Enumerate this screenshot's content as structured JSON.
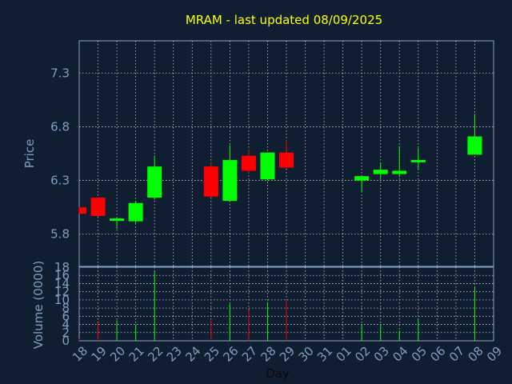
{
  "colors": {
    "background": "#0f1e30",
    "title": "#ffff00",
    "axis_text": "#7e9ec4",
    "frame": "#8aa4c8",
    "grid": "#c8c8c8",
    "up": "#00ff00",
    "down": "#ff0000"
  },
  "chart_data": [
    {
      "type": "candlestick",
      "title": "MRAM - last updated 08/09/2025",
      "xlabel": "",
      "ylabel": "Price",
      "ylim": [
        5.5,
        7.6
      ],
      "yticks": [
        "5.8",
        "6.3",
        "6.8",
        "7.3"
      ],
      "grid": true,
      "days": [
        "18",
        "19",
        "20",
        "21",
        "22",
        "25",
        "26",
        "27",
        "28",
        "29",
        "02",
        "03",
        "04",
        "05",
        "08"
      ],
      "open": [
        6.05,
        6.14,
        5.93,
        5.92,
        6.14,
        6.43,
        6.11,
        6.53,
        6.31,
        6.56,
        6.3,
        6.36,
        6.36,
        6.47,
        6.54
      ],
      "close": [
        5.99,
        5.97,
        5.94,
        6.09,
        6.43,
        6.15,
        6.49,
        6.39,
        6.56,
        6.42,
        6.34,
        6.4,
        6.39,
        6.49,
        6.71
      ],
      "high": [
        6.05,
        6.14,
        5.95,
        6.11,
        6.53,
        6.47,
        6.63,
        6.59,
        6.56,
        6.68,
        6.34,
        6.46,
        6.62,
        6.6,
        6.92
      ],
      "low": [
        5.99,
        5.96,
        5.85,
        5.89,
        6.12,
        6.14,
        6.1,
        6.37,
        6.3,
        6.41,
        6.19,
        6.32,
        6.33,
        6.4,
        6.54
      ]
    },
    {
      "type": "bar",
      "xlabel": "Day",
      "ylabel": "Volume (0000)",
      "ylim": [
        0,
        18
      ],
      "yticks": [
        "0",
        "2",
        "4",
        "6",
        "8",
        "10",
        "12",
        "14",
        "16",
        "18"
      ],
      "grid": true,
      "categories": [
        "18",
        "19",
        "20",
        "21",
        "22",
        "25",
        "26",
        "27",
        "28",
        "29",
        "02",
        "03",
        "04",
        "05",
        "08"
      ],
      "values": [
        0.5,
        4.5,
        5,
        4,
        17,
        5,
        9,
        7.5,
        9.5,
        10,
        4,
        4,
        2.5,
        5.5,
        13
      ],
      "direction": [
        "down",
        "down",
        "up",
        "up",
        "up",
        "down",
        "up",
        "down",
        "up",
        "down",
        "up",
        "up",
        "up",
        "up",
        "up"
      ],
      "xticks": [
        "18",
        "19",
        "20",
        "21",
        "22",
        "23",
        "24",
        "25",
        "26",
        "27",
        "28",
        "29",
        "30",
        "31",
        "01",
        "02",
        "03",
        "04",
        "05",
        "06",
        "07",
        "08",
        "09"
      ]
    }
  ]
}
